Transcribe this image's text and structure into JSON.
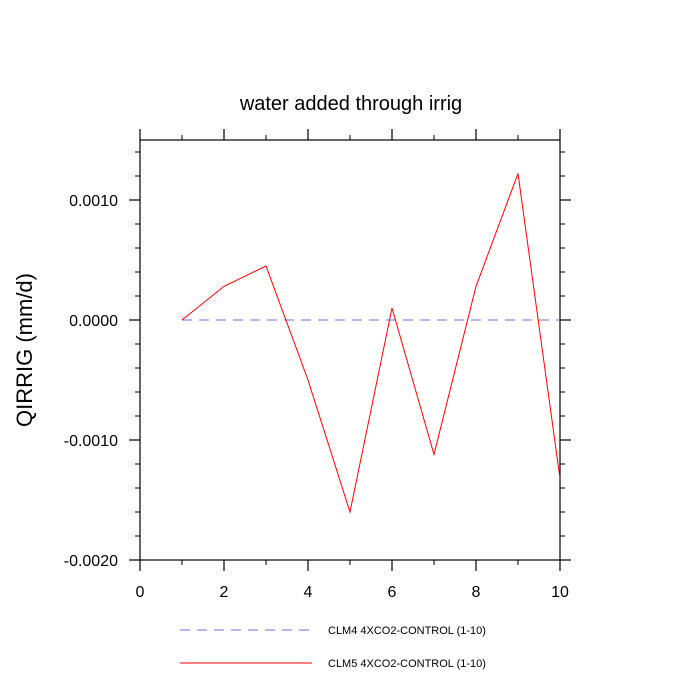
{
  "chart_data": {
    "type": "line",
    "title": "water added through irrig",
    "xlabel": "",
    "ylabel": "QIRRIG  (mm/d)",
    "xlim": [
      0,
      10
    ],
    "ylim": [
      -0.002,
      0.0015
    ],
    "x_ticks": [
      "0",
      "2",
      "4",
      "6",
      "8",
      "10"
    ],
    "y_ticks": [
      "-0.0020",
      "-0.0010",
      "0.0000",
      "0.0010"
    ],
    "grid": false,
    "legend_position": "bottom",
    "series": [
      {
        "name": "CLM4 4XCO2-CONTROL (1-10)",
        "color": "#6f6fd8",
        "style": "dashed",
        "x": [
          1,
          2,
          3,
          4,
          5,
          6,
          7,
          8,
          9,
          10
        ],
        "y": [
          0,
          0,
          0,
          0,
          0,
          0,
          0,
          0,
          0,
          0
        ]
      },
      {
        "name": "CLM5 4XCO2-CONTROL (1-10)",
        "color": "#ff0000",
        "style": "solid",
        "x": [
          1,
          2,
          3,
          4,
          5,
          6,
          7,
          8,
          9,
          10
        ],
        "y": [
          0.0,
          0.00028,
          0.00045,
          -0.0005,
          -0.0016,
          0.0001,
          -0.00112,
          0.00028,
          0.00122,
          -0.00132
        ]
      }
    ]
  }
}
